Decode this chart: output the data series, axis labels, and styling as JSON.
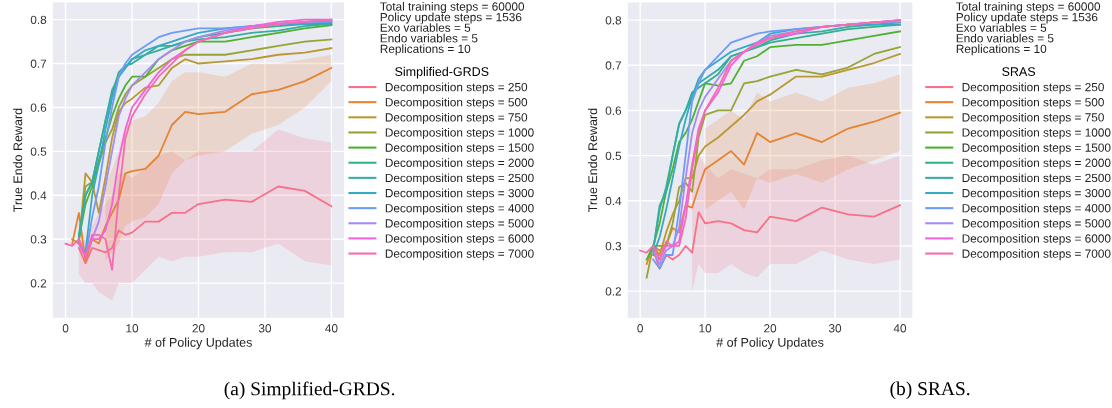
{
  "chart_data": [
    {
      "type": "line",
      "xlabel": "# of Policy Updates",
      "ylabel": "True Endo Reward",
      "legend_title": "Simplified-GRDS",
      "legend": "right",
      "grid": true,
      "marker": "none",
      "line_style": "solid",
      "annotations": [
        "Total training steps = 60000\nPolicy update steps = 1536\nExo variables = 5\nEndo variables = 5\nReplications = 10",
        "(a) Simplified-GRDS."
      ],
      "xlim": [
        -2,
        42
      ],
      "ylim": [
        0.12,
        0.84
      ],
      "xticks": [
        0,
        10,
        20,
        30,
        40
      ],
      "yticks": [
        0.2,
        0.3,
        0.4,
        0.5,
        0.6,
        0.7,
        0.8
      ],
      "x": [
        0,
        1,
        2,
        3,
        4,
        5,
        6,
        7,
        8,
        9,
        10,
        12,
        14,
        16,
        18,
        20,
        24,
        28,
        32,
        36,
        40
      ],
      "series": [
        {
          "name": "Decomposition steps = 250",
          "color": "#f77189",
          "values": [
            null,
            null,
            0.28,
            0.245,
            0.28,
            0.275,
            0.27,
            0.28,
            0.32,
            0.31,
            0.315,
            0.34,
            0.34,
            0.36,
            0.36,
            0.38,
            0.39,
            0.385,
            0.42,
            0.41,
            0.375
          ],
          "lower": [
            null,
            null,
            0.22,
            0.2,
            0.2,
            0.18,
            0.17,
            0.16,
            0.2,
            0.2,
            0.2,
            0.23,
            0.26,
            0.25,
            0.26,
            0.26,
            0.27,
            0.27,
            0.29,
            0.25,
            0.24
          ],
          "upper": [
            null,
            null,
            0.34,
            0.3,
            0.33,
            0.36,
            0.38,
            0.4,
            0.45,
            0.45,
            0.44,
            0.46,
            0.49,
            0.5,
            0.48,
            0.5,
            0.5,
            0.5,
            0.55,
            0.53,
            0.52
          ]
        },
        {
          "name": "Decomposition steps = 500",
          "color": "#e68332",
          "values": [
            null,
            0.29,
            0.36,
            0.25,
            0.3,
            0.29,
            0.33,
            0.36,
            0.39,
            0.45,
            0.455,
            0.46,
            0.49,
            0.56,
            0.59,
            0.585,
            0.59,
            0.63,
            0.64,
            0.66,
            0.69
          ],
          "lower": [
            null,
            null,
            null,
            null,
            null,
            null,
            0.25,
            0.27,
            0.29,
            0.33,
            0.34,
            0.35,
            0.38,
            0.45,
            0.48,
            0.49,
            0.5,
            0.54,
            0.56,
            0.6,
            0.66
          ],
          "upper": [
            null,
            null,
            null,
            null,
            null,
            null,
            0.42,
            0.46,
            0.5,
            0.56,
            0.57,
            0.58,
            0.61,
            0.66,
            0.68,
            0.68,
            0.67,
            0.7,
            0.7,
            0.71,
            0.72
          ]
        },
        {
          "name": "Decomposition steps = 750",
          "color": "#bb9832",
          "values": [
            null,
            0.3,
            0.29,
            0.45,
            0.43,
            0.36,
            0.44,
            0.53,
            0.59,
            0.61,
            0.62,
            0.645,
            0.65,
            0.69,
            0.71,
            0.7,
            0.705,
            0.71,
            0.72,
            0.725,
            0.735
          ]
        },
        {
          "name": "Decomposition steps = 1000",
          "color": "#97a431",
          "values": [
            null,
            null,
            0.3,
            0.42,
            0.43,
            0.47,
            0.52,
            0.55,
            0.6,
            0.63,
            0.65,
            0.67,
            0.69,
            0.71,
            0.72,
            0.72,
            0.72,
            0.73,
            0.74,
            0.75,
            0.755
          ]
        },
        {
          "name": "Decomposition steps = 1500",
          "color": "#50b131",
          "values": [
            null,
            null,
            0.3,
            0.38,
            0.42,
            0.48,
            0.53,
            0.58,
            0.62,
            0.65,
            0.67,
            0.67,
            0.71,
            0.73,
            0.74,
            0.75,
            0.75,
            0.76,
            0.77,
            0.78,
            0.787
          ]
        },
        {
          "name": "Decomposition steps = 2000",
          "color": "#34af8b",
          "values": [
            null,
            null,
            0.31,
            0.4,
            0.43,
            0.5,
            0.57,
            0.63,
            0.68,
            0.695,
            0.7,
            0.72,
            0.74,
            0.74,
            0.75,
            0.76,
            0.77,
            0.78,
            0.785,
            0.79,
            0.79
          ]
        },
        {
          "name": "Decomposition steps = 2500",
          "color": "#36ada4",
          "values": [
            null,
            null,
            0.3,
            0.4,
            0.43,
            0.5,
            0.57,
            0.64,
            0.67,
            0.69,
            0.71,
            0.72,
            0.73,
            0.74,
            0.75,
            0.755,
            0.76,
            0.77,
            0.775,
            0.785,
            0.79
          ]
        },
        {
          "name": "Decomposition steps = 3000",
          "color": "#38a9c5",
          "values": [
            null,
            null,
            0.29,
            0.27,
            0.4,
            0.47,
            0.55,
            0.62,
            0.67,
            0.69,
            0.71,
            0.73,
            0.74,
            0.75,
            0.76,
            0.77,
            0.78,
            0.785,
            0.79,
            0.79,
            0.795
          ]
        },
        {
          "name": "Decomposition steps = 4000",
          "color": "#6e9bf4",
          "values": [
            null,
            null,
            0.3,
            0.26,
            0.35,
            0.42,
            0.52,
            0.6,
            0.67,
            0.7,
            0.72,
            0.74,
            0.76,
            0.77,
            0.775,
            0.78,
            0.78,
            0.785,
            0.79,
            0.795,
            0.795
          ]
        },
        {
          "name": "Decomposition steps = 5000",
          "color": "#a48cf4",
          "values": [
            null,
            null,
            0.29,
            0.26,
            0.3,
            0.34,
            0.42,
            0.5,
            0.58,
            0.62,
            0.65,
            0.68,
            0.71,
            0.73,
            0.75,
            0.76,
            0.775,
            0.785,
            0.79,
            0.795,
            0.8
          ]
        },
        {
          "name": "Decomposition steps = 6000",
          "color": "#f461dd",
          "values": [
            null,
            null,
            0.29,
            0.26,
            0.3,
            0.3,
            0.32,
            0.38,
            0.48,
            0.55,
            0.6,
            0.64,
            0.68,
            0.71,
            0.73,
            0.75,
            0.77,
            0.785,
            0.795,
            0.8,
            0.8
          ]
        },
        {
          "name": "Decomposition steps = 7000",
          "color": "#f66bad",
          "values": [
            0.29,
            0.285,
            0.3,
            0.26,
            0.31,
            0.31,
            0.3,
            0.23,
            0.4,
            0.53,
            0.58,
            0.63,
            0.67,
            0.7,
            0.73,
            0.75,
            0.77,
            0.78,
            0.79,
            0.795,
            0.8
          ]
        }
      ]
    },
    {
      "type": "line",
      "xlabel": "# of Policy Updates",
      "ylabel": "True Endo Reward",
      "legend_title": "SRAS",
      "legend": "right",
      "grid": true,
      "marker": "none",
      "line_style": "solid",
      "annotations": [
        "Total training steps = 60000\nPolicy update steps = 1536\nExo variables = 5\nEndo variables = 5\nReplications = 10",
        "(b) SRAS."
      ],
      "xlim": [
        -2,
        42
      ],
      "ylim": [
        0.14,
        0.84
      ],
      "xticks": [
        0,
        10,
        20,
        30,
        40
      ],
      "yticks": [
        0.2,
        0.3,
        0.4,
        0.5,
        0.6,
        0.7,
        0.8
      ],
      "x": [
        0,
        1,
        2,
        3,
        4,
        5,
        6,
        7,
        8,
        9,
        10,
        12,
        14,
        16,
        18,
        20,
        24,
        28,
        32,
        36,
        40
      ],
      "series": [
        {
          "name": "Decomposition steps = 250",
          "color": "#f77189",
          "values": [
            null,
            null,
            0.29,
            0.25,
            0.28,
            0.27,
            0.28,
            0.3,
            0.285,
            0.375,
            0.35,
            0.355,
            0.35,
            0.335,
            0.33,
            0.365,
            0.355,
            0.385,
            0.37,
            0.365,
            0.39
          ],
          "lower": [
            null,
            null,
            null,
            null,
            null,
            null,
            null,
            null,
            0.2,
            0.26,
            0.24,
            0.24,
            0.26,
            0.24,
            0.23,
            0.26,
            0.26,
            0.29,
            0.27,
            0.26,
            0.27
          ],
          "upper": [
            null,
            null,
            null,
            null,
            null,
            null,
            null,
            null,
            0.46,
            0.5,
            0.48,
            0.45,
            0.47,
            0.46,
            0.45,
            0.47,
            0.47,
            0.49,
            0.5,
            0.48,
            0.5
          ]
        },
        {
          "name": "Decomposition steps = 500",
          "color": "#e68332",
          "values": [
            null,
            0.26,
            0.3,
            0.29,
            0.3,
            0.34,
            0.33,
            0.39,
            0.385,
            0.43,
            0.47,
            0.49,
            0.51,
            0.48,
            0.55,
            0.53,
            0.55,
            0.53,
            0.56,
            0.575,
            0.595
          ],
          "lower": [
            null,
            null,
            null,
            null,
            null,
            null,
            null,
            null,
            null,
            null,
            0.38,
            0.4,
            0.42,
            0.38,
            0.45,
            0.44,
            0.46,
            0.44,
            0.47,
            0.49,
            0.51
          ],
          "upper": [
            null,
            null,
            null,
            null,
            null,
            null,
            null,
            null,
            null,
            null,
            0.56,
            0.58,
            0.6,
            0.58,
            0.64,
            0.62,
            0.64,
            0.62,
            0.65,
            0.66,
            0.68
          ]
        },
        {
          "name": "Decomposition steps = 750",
          "color": "#bb9832",
          "values": [
            null,
            null,
            0.3,
            0.28,
            0.33,
            0.37,
            0.4,
            0.45,
            0.45,
            0.5,
            0.52,
            0.54,
            0.565,
            0.59,
            0.62,
            0.635,
            0.675,
            0.675,
            0.69,
            0.705,
            0.725
          ]
        },
        {
          "name": "Decomposition steps = 1000",
          "color": "#97a431",
          "values": [
            null,
            0.23,
            0.3,
            0.3,
            0.3,
            0.35,
            0.43,
            0.44,
            0.42,
            0.54,
            0.59,
            0.6,
            0.6,
            0.66,
            0.665,
            0.675,
            0.69,
            0.68,
            0.695,
            0.725,
            0.74
          ]
        },
        {
          "name": "Decomposition steps = 1500",
          "color": "#50b131",
          "values": [
            null,
            0.27,
            0.3,
            0.35,
            0.42,
            0.47,
            0.53,
            0.55,
            0.58,
            0.62,
            0.66,
            0.655,
            0.66,
            0.71,
            0.72,
            0.74,
            0.745,
            0.745,
            0.755,
            0.765,
            0.775
          ]
        },
        {
          "name": "Decomposition steps = 2000",
          "color": "#34af8b",
          "values": [
            null,
            null,
            0.29,
            0.38,
            0.43,
            0.5,
            0.57,
            0.6,
            0.64,
            0.65,
            0.66,
            0.68,
            0.72,
            0.73,
            0.74,
            0.75,
            0.76,
            0.77,
            0.78,
            0.785,
            0.79
          ]
        },
        {
          "name": "Decomposition steps = 2500",
          "color": "#36ada4",
          "values": [
            null,
            null,
            0.29,
            0.39,
            0.42,
            0.5,
            0.57,
            0.6,
            0.63,
            0.66,
            0.67,
            0.69,
            0.72,
            0.73,
            0.74,
            0.755,
            0.77,
            0.775,
            0.785,
            0.79,
            0.79
          ]
        },
        {
          "name": "Decomposition steps = 3000",
          "color": "#38a9c5",
          "values": [
            null,
            null,
            0.28,
            0.32,
            0.38,
            0.45,
            0.52,
            0.58,
            0.63,
            0.67,
            0.69,
            0.71,
            0.73,
            0.74,
            0.75,
            0.77,
            0.78,
            0.785,
            0.79,
            0.79,
            0.795
          ]
        },
        {
          "name": "Decomposition steps = 4000",
          "color": "#6e9bf4",
          "values": [
            null,
            null,
            0.27,
            0.25,
            0.28,
            0.28,
            0.38,
            0.5,
            0.62,
            0.66,
            0.69,
            0.72,
            0.75,
            0.76,
            0.77,
            0.775,
            0.78,
            0.785,
            0.79,
            0.795,
            0.795
          ]
        },
        {
          "name": "Decomposition steps = 5000",
          "color": "#a48cf4",
          "values": [
            null,
            null,
            0.29,
            0.26,
            0.29,
            0.3,
            0.34,
            0.45,
            0.55,
            0.6,
            0.63,
            0.67,
            0.71,
            0.73,
            0.75,
            0.765,
            0.775,
            0.785,
            0.79,
            0.795,
            0.8
          ]
        },
        {
          "name": "Decomposition steps = 6000",
          "color": "#f461dd",
          "values": [
            null,
            null,
            0.3,
            0.27,
            0.3,
            0.3,
            0.31,
            0.39,
            0.48,
            0.56,
            0.6,
            0.64,
            0.7,
            0.73,
            0.75,
            0.76,
            0.77,
            0.785,
            0.79,
            0.795,
            0.8
          ]
        },
        {
          "name": "Decomposition steps = 7000",
          "color": "#f66bad",
          "values": [
            0.29,
            0.285,
            0.3,
            0.27,
            0.31,
            0.3,
            0.3,
            0.36,
            0.47,
            0.55,
            0.6,
            0.65,
            0.71,
            0.73,
            0.745,
            0.76,
            0.775,
            0.785,
            0.79,
            0.795,
            0.8
          ]
        }
      ]
    }
  ]
}
